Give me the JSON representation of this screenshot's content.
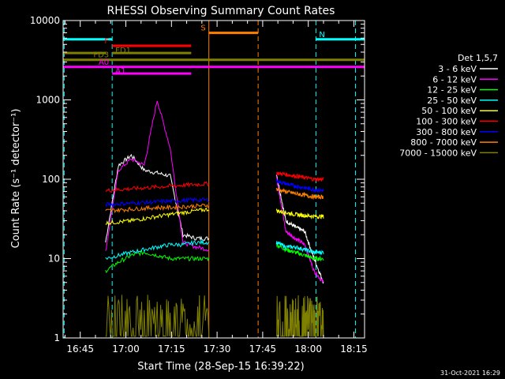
{
  "chart_data": {
    "type": "line",
    "title": "RHESSI Observing Summary Count Rates",
    "xlabel": "Start Time (28-Sep-15 16:39:22)",
    "ylabel": "Count Rate (s⁻¹ detector⁻¹)",
    "x_range_minutes": [
      39.37,
      138.5
    ],
    "ylim": [
      1,
      10000
    ],
    "y_scale": "log",
    "x_ticks": [
      {
        "value": 45,
        "label": "16:45"
      },
      {
        "value": 60,
        "label": "17:00"
      },
      {
        "value": 75,
        "label": "17:15"
      },
      {
        "value": 90,
        "label": "17:30"
      },
      {
        "value": 105,
        "label": "17:45"
      },
      {
        "value": 120,
        "label": "18:00"
      },
      {
        "value": 135,
        "label": "18:15"
      }
    ],
    "y_ticks": [
      {
        "value": 1,
        "label": "1"
      },
      {
        "value": 10,
        "label": "10"
      },
      {
        "value": 100,
        "label": "100"
      },
      {
        "value": 1000,
        "label": "1000"
      },
      {
        "value": 10000,
        "label": "10000"
      }
    ],
    "legend_title": "Det 1,5,7",
    "legend_placement": "right",
    "segments": [
      [
        53.3,
        87.3
      ],
      [
        109.5,
        125.0
      ]
    ],
    "series": [
      {
        "name": "3 - 6 keV",
        "color": "#ffffff",
        "values": [
          16,
          150,
          200,
          130,
          120,
          110,
          20,
          18,
          18,
          120,
          30,
          25,
          22,
          10,
          5
        ]
      },
      {
        "name": "6 - 12 keV",
        "color": "#ff00ff",
        "values": [
          12,
          130,
          180,
          150,
          1000,
          250,
          16,
          14,
          13,
          110,
          22,
          18,
          15,
          7,
          5
        ]
      },
      {
        "name": "12 - 25 keV",
        "color": "#00ff00",
        "values": [
          7,
          9,
          11,
          12,
          11,
          10,
          10,
          10,
          10,
          15,
          13,
          12,
          11,
          10,
          10
        ]
      },
      {
        "name": "25 - 50 keV",
        "color": "#00ffff",
        "values": [
          10,
          11,
          12,
          13,
          14,
          15,
          15,
          16,
          16,
          16,
          14,
          14,
          13,
          12,
          12
        ]
      },
      {
        "name": "50 - 100 keV",
        "color": "#ffff00",
        "values": [
          28,
          29,
          30,
          32,
          34,
          36,
          38,
          40,
          42,
          40,
          38,
          36,
          35,
          34,
          34
        ]
      },
      {
        "name": "100 - 300 keV",
        "color": "#ff0000",
        "values": [
          72,
          74,
          76,
          78,
          80,
          82,
          84,
          86,
          88,
          120,
          115,
          110,
          105,
          100,
          100
        ]
      },
      {
        "name": "300 - 800 keV",
        "color": "#0000ff",
        "values": [
          48,
          49,
          50,
          51,
          52,
          53,
          54,
          55,
          55,
          95,
          88,
          82,
          78,
          74,
          72
        ]
      },
      {
        "name": "800 - 7000 keV",
        "color": "#ff8000",
        "values": [
          40,
          41,
          42,
          43,
          44,
          44,
          45,
          46,
          47,
          75,
          70,
          66,
          63,
          60,
          60
        ]
      },
      {
        "name": "7000 - 15000 keV",
        "color": "#808000",
        "values": [
          2,
          2,
          2,
          2,
          3,
          2,
          2,
          3,
          2,
          2,
          3,
          2,
          2,
          2,
          2
        ]
      }
    ],
    "flag_bars": [
      {
        "label": "N",
        "color": "#00ffff",
        "y": 5800,
        "intervals": [
          [
            39.37,
            55.5
          ],
          [
            122.5,
            138.5
          ]
        ]
      },
      {
        "label": "S",
        "color": "#ff8000",
        "y": 7000,
        "intervals": [
          [
            87.3,
            103.5
          ]
        ]
      },
      {
        "label": "F",
        "color": "#ff0000",
        "y": 4800,
        "intervals": [
          [
            55.5,
            81.5
          ]
        ]
      },
      {
        "label": "FD1",
        "color": "#808000",
        "y": 3900,
        "intervals": [
          [
            39.37,
            53.5
          ],
          [
            55.5,
            81.5
          ]
        ]
      },
      {
        "label": "FD3",
        "color": "#808000",
        "y": 3200,
        "intervals": [
          [
            39.37,
            138.5
          ]
        ]
      },
      {
        "label": "A0",
        "color": "#ff00ff",
        "y": 2600,
        "intervals": [
          [
            39.37,
            138.5
          ]
        ]
      },
      {
        "label": "A1",
        "color": "#ff00ff",
        "y": 2150,
        "intervals": [
          [
            55.5,
            81.5
          ]
        ]
      }
    ],
    "vlines": [
      {
        "x": 39.7,
        "color": "#00ffff",
        "style": "dashed"
      },
      {
        "x": 55.5,
        "color": "#00ffff",
        "style": "dashed"
      },
      {
        "x": 87.3,
        "color": "#ff8000",
        "style": "solid"
      },
      {
        "x": 103.5,
        "color": "#ff8000",
        "style": "dashed"
      },
      {
        "x": 122.5,
        "color": "#00ffff",
        "style": "dashed"
      },
      {
        "x": 135.5,
        "color": "#00ffff",
        "style": "dashed"
      }
    ]
  },
  "footer_date": "31-Oct-2021 16:29"
}
